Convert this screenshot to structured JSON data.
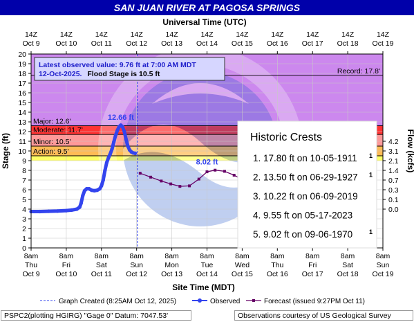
{
  "title": "SAN JUAN RIVER AT PAGOSA SPRINGS",
  "top_axis_title": "Universal Time (UTC)",
  "bottom_axis_title": "Site Time (MDT)",
  "left_axis_title": "Stage (ft)",
  "right_axis_title": "Flow (kcfs)",
  "latest_observed": {
    "line1": "Latest observed value: 9.76 ft at 7:00 AM MDT",
    "line2_date": "12-Oct-2025.",
    "line2_flood": "Flood Stage is 10.5 ft"
  },
  "historic_crests": {
    "title": "Historic Crests",
    "items": [
      {
        "text": "1. 17.80 ft  on 10-05-1911",
        "sup": "1"
      },
      {
        "text": "2. 13.50 ft  on 06-29-1927",
        "sup": "1"
      },
      {
        "text": "3. 10.22 ft  on 06-09-2019",
        "sup": ""
      },
      {
        "text": "4. 9.55 ft   on 05-17-2023",
        "sup": ""
      },
      {
        "text": "5. 9.02 ft   on 09-06-1970",
        "sup": "1"
      }
    ]
  },
  "legend": {
    "graph_created": "Graph Created (8:25AM Oct 12, 2025)",
    "observed": "Observed",
    "forecast": "Forecast (issued 9:27PM Oct 11)"
  },
  "footer": {
    "left": "PSPC2(plotting HGIRG) \"Gage 0\" Datum: 7047.53'",
    "right": "Observations courtesy of US Geological Survey"
  },
  "colors": {
    "title_bg": "#0000aa",
    "record_band": "#cc88ee",
    "major_band": "#ff3333",
    "moderate_band": "#ff9999",
    "minor_band": "#ffbb55",
    "action_band": "#ffff66",
    "observed": "#3344ee",
    "forecast": "#660066"
  },
  "chart_data": {
    "type": "line",
    "x_axis": {
      "type": "datetime_days",
      "range": [
        "Oct 9 8am",
        "Oct 19 8am"
      ],
      "bottom_ticks": [
        {
          "top": "8am",
          "bottom": "Thu",
          "date": "Oct 9"
        },
        {
          "top": "8am",
          "bottom": "Fri",
          "date": "Oct 10"
        },
        {
          "top": "8am",
          "bottom": "Sat",
          "date": "Oct 11"
        },
        {
          "top": "8am",
          "bottom": "Sun",
          "date": "Oct 12"
        },
        {
          "top": "8am",
          "bottom": "Mon",
          "date": "Oct 13"
        },
        {
          "top": "8am",
          "bottom": "Tue",
          "date": "Oct 14"
        },
        {
          "top": "8am",
          "bottom": "Wed",
          "date": "Oct 15"
        },
        {
          "top": "8am",
          "bottom": "Thu",
          "date": "Oct 16"
        },
        {
          "top": "8am",
          "bottom": "Fri",
          "date": "Oct 17"
        },
        {
          "top": "8am",
          "bottom": "Sat",
          "date": "Oct 18"
        },
        {
          "top": "8am",
          "bottom": "Sun",
          "date": "Oct 19"
        }
      ],
      "top_ticks": [
        {
          "time": "14Z",
          "date": "Oct 9"
        },
        {
          "time": "14Z",
          "date": "Oct 10"
        },
        {
          "time": "14Z",
          "date": "Oct 11"
        },
        {
          "time": "14Z",
          "date": "Oct 12"
        },
        {
          "time": "14Z",
          "date": "Oct 13"
        },
        {
          "time": "14Z",
          "date": "Oct 14"
        },
        {
          "time": "14Z",
          "date": "Oct 15"
        },
        {
          "time": "14Z",
          "date": "Oct 16"
        },
        {
          "time": "14Z",
          "date": "Oct 17"
        },
        {
          "time": "14Z",
          "date": "Oct 18"
        },
        {
          "time": "14Z",
          "date": "Oct 19"
        }
      ]
    },
    "y_axis": {
      "label": "Stage (ft)",
      "range": [
        0,
        20
      ],
      "ticks": [
        0,
        1,
        2,
        3,
        4,
        5,
        6,
        7,
        8,
        9,
        10,
        11,
        12,
        13,
        14,
        15,
        16,
        17,
        18,
        19,
        20
      ]
    },
    "y2_axis": {
      "label": "Flow (kcfs)",
      "ticks": [
        {
          "label": "0.0",
          "stage": 4.0
        },
        {
          "label": "0.1",
          "stage": 5.0
        },
        {
          "label": "0.3",
          "stage": 6.0
        },
        {
          "label": "0.7",
          "stage": 7.0
        },
        {
          "label": "1.4",
          "stage": 8.0
        },
        {
          "label": "2.1",
          "stage": 9.0
        },
        {
          "label": "3.1",
          "stage": 10.0
        },
        {
          "label": "4.2",
          "stage": 11.0
        }
      ]
    },
    "thresholds": [
      {
        "name": "Record",
        "label": "Record: 17.8'",
        "stage": 17.8
      },
      {
        "name": "Major",
        "label": "Major: 12.6'",
        "stage": 12.6
      },
      {
        "name": "Moderate",
        "label": "Moderate: 11.7'",
        "stage": 11.7
      },
      {
        "name": "Minor",
        "label": "Minor: 10.5'",
        "stage": 10.5
      },
      {
        "name": "Action",
        "label": "Action: 9.5'",
        "stage": 9.5
      }
    ],
    "annotations": [
      {
        "label": "12.66 ft",
        "day": 2.55,
        "stage": 12.66,
        "series": "Observed"
      },
      {
        "label": "8.02 ft",
        "day": 5.0,
        "stage": 8.02,
        "series": "Forecast"
      }
    ],
    "graph_created_day": 3.02,
    "series": [
      {
        "name": "Observed",
        "points": [
          [
            0.0,
            3.75
          ],
          [
            0.25,
            3.75
          ],
          [
            0.5,
            3.78
          ],
          [
            0.75,
            3.8
          ],
          [
            1.0,
            3.85
          ],
          [
            1.15,
            3.9
          ],
          [
            1.3,
            4.0
          ],
          [
            1.38,
            4.2
          ],
          [
            1.42,
            4.6
          ],
          [
            1.47,
            5.4
          ],
          [
            1.52,
            5.9
          ],
          [
            1.58,
            6.1
          ],
          [
            1.65,
            6.1
          ],
          [
            1.72,
            5.95
          ],
          [
            1.8,
            5.9
          ],
          [
            1.88,
            5.95
          ],
          [
            1.95,
            6.1
          ],
          [
            2.0,
            6.4
          ],
          [
            2.05,
            7.0
          ],
          [
            2.1,
            8.0
          ],
          [
            2.15,
            8.8
          ],
          [
            2.2,
            9.3
          ],
          [
            2.25,
            9.7
          ],
          [
            2.3,
            10.2
          ],
          [
            2.35,
            10.9
          ],
          [
            2.4,
            11.6
          ],
          [
            2.45,
            12.1
          ],
          [
            2.5,
            12.5
          ],
          [
            2.55,
            12.66
          ],
          [
            2.6,
            12.5
          ],
          [
            2.65,
            12.0
          ],
          [
            2.7,
            11.2
          ],
          [
            2.75,
            10.5
          ],
          [
            2.8,
            10.1
          ],
          [
            2.85,
            9.9
          ],
          [
            2.9,
            9.8
          ],
          [
            2.96,
            9.76
          ]
        ]
      },
      {
        "name": "Forecast",
        "points": [
          [
            3.1,
            7.7
          ],
          [
            3.4,
            7.3
          ],
          [
            3.7,
            6.9
          ],
          [
            3.97,
            6.6
          ],
          [
            4.23,
            6.35
          ],
          [
            4.5,
            6.4
          ],
          [
            4.77,
            7.1
          ],
          [
            5.0,
            7.85
          ],
          [
            5.23,
            8.02
          ],
          [
            5.5,
            7.9
          ],
          [
            5.77,
            7.5
          ],
          [
            6.0,
            7.05
          ],
          [
            6.25,
            6.6
          ],
          [
            6.5,
            6.3
          ],
          [
            6.8,
            6.2
          ]
        ]
      }
    ]
  }
}
